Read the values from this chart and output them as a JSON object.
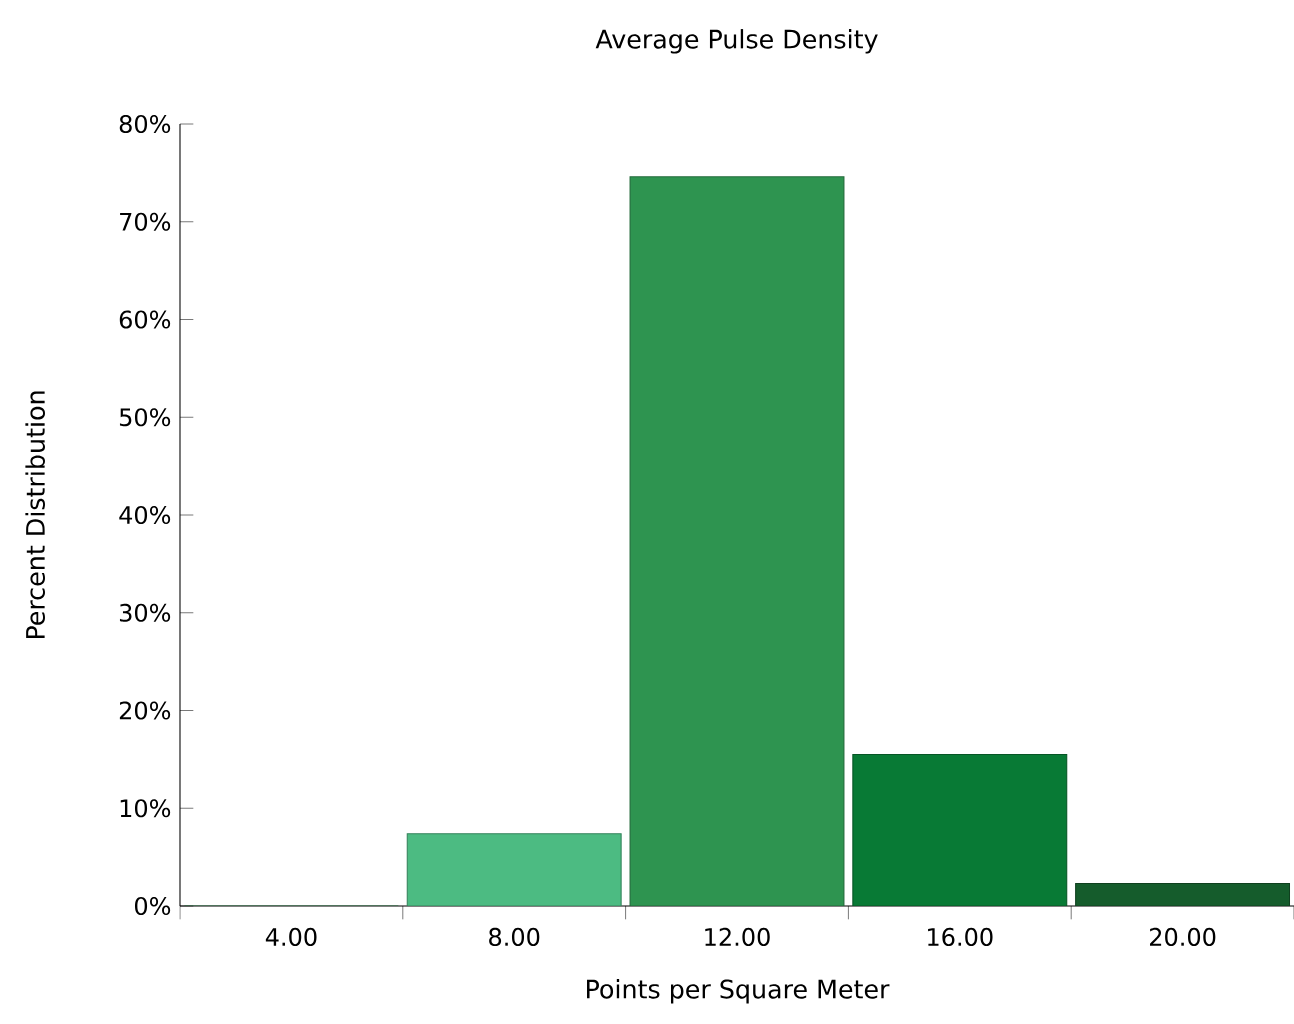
{
  "chart_data": {
    "type": "bar",
    "title": "Average  Pulse Density",
    "xlabel": "Points per Square Meter",
    "ylabel": "Percent Distribution",
    "categories": [
      "4.00",
      "8.00",
      "12.00",
      "16.00",
      "20.00"
    ],
    "values": [
      0,
      7.4,
      74.6,
      15.5,
      2.3
    ],
    "colors": [
      "#2e9450",
      "#4cbb82",
      "#2e9450",
      "#087a35",
      "#155c2c"
    ],
    "ylim": [
      0,
      80
    ],
    "yticks": [
      {
        "value": 0,
        "label": "0%"
      },
      {
        "value": 10,
        "label": "10%"
      },
      {
        "value": 20,
        "label": "20%"
      },
      {
        "value": 30,
        "label": "30%"
      },
      {
        "value": 40,
        "label": "40%"
      },
      {
        "value": 50,
        "label": "50%"
      },
      {
        "value": 60,
        "label": "60%"
      },
      {
        "value": 70,
        "label": "70%"
      },
      {
        "value": 80,
        "label": "80%"
      }
    ],
    "grid": false
  }
}
